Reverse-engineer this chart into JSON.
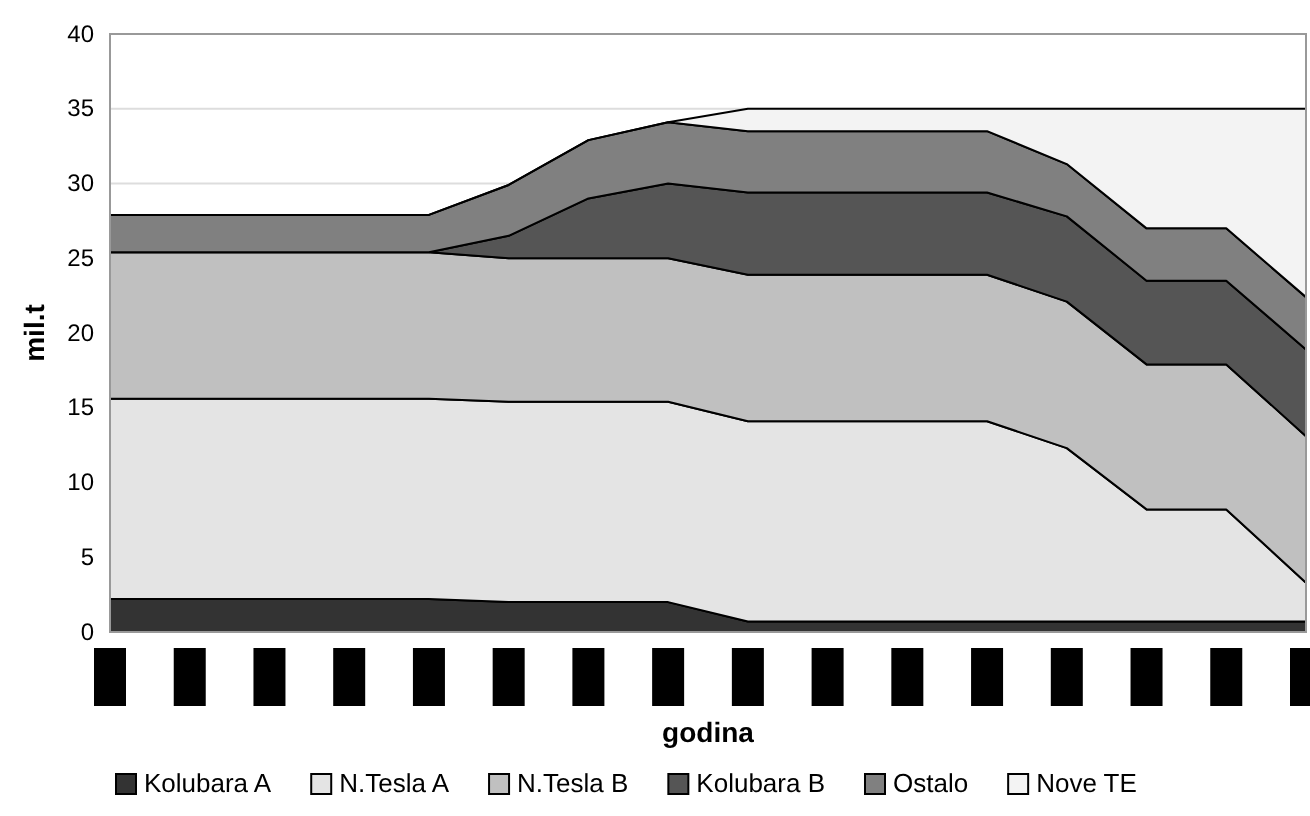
{
  "chart_data": {
    "type": "area",
    "stacked": true,
    "xlabel": "godina",
    "ylabel": "mil.t",
    "categories": [
      null,
      null,
      null,
      null,
      null,
      null,
      null,
      null,
      null,
      null,
      null,
      null,
      null,
      null,
      null,
      null
    ],
    "ylim": [
      0,
      40
    ],
    "yticks": [
      0,
      5,
      10,
      15,
      20,
      25,
      30,
      35,
      40
    ],
    "grid": "y",
    "legend": "bottom",
    "series": [
      {
        "name": "Kolubara A",
        "color": "#333333",
        "values": [
          2.2,
          2.2,
          2.2,
          2.2,
          2.2,
          2.0,
          2.0,
          2.0,
          0.7,
          0.7,
          0.7,
          0.7,
          0.7,
          0.7,
          0.7,
          0.7
        ]
      },
      {
        "name": "N.Tesla A",
        "color": "#e4e4e4",
        "values": [
          13.4,
          13.4,
          13.4,
          13.4,
          13.4,
          13.4,
          13.4,
          13.4,
          13.4,
          13.4,
          13.4,
          13.4,
          11.6,
          7.5,
          7.5,
          2.6
        ]
      },
      {
        "name": "N.Tesla B",
        "color": "#c0c0c0",
        "values": [
          9.8,
          9.8,
          9.8,
          9.8,
          9.8,
          9.6,
          9.6,
          9.6,
          9.8,
          9.8,
          9.8,
          9.8,
          9.8,
          9.7,
          9.7,
          9.8
        ]
      },
      {
        "name": "Kolubara B",
        "color": "#555555",
        "values": [
          0,
          0,
          0,
          0,
          0,
          1.5,
          4.0,
          5.0,
          5.5,
          5.5,
          5.5,
          5.5,
          5.7,
          5.6,
          5.6,
          5.8
        ]
      },
      {
        "name": "Ostalo",
        "color": "#808080",
        "values": [
          2.5,
          2.5,
          2.5,
          2.5,
          2.5,
          3.4,
          3.9,
          4.1,
          4.1,
          4.1,
          4.1,
          4.1,
          3.5,
          3.5,
          3.5,
          3.5
        ]
      },
      {
        "name": "Nove TE",
        "color": "#f3f3f3",
        "values": [
          0,
          0,
          0,
          0,
          0,
          0,
          0,
          0,
          1.5,
          1.5,
          1.5,
          1.5,
          3.7,
          8.0,
          8.0,
          12.6
        ]
      }
    ]
  }
}
